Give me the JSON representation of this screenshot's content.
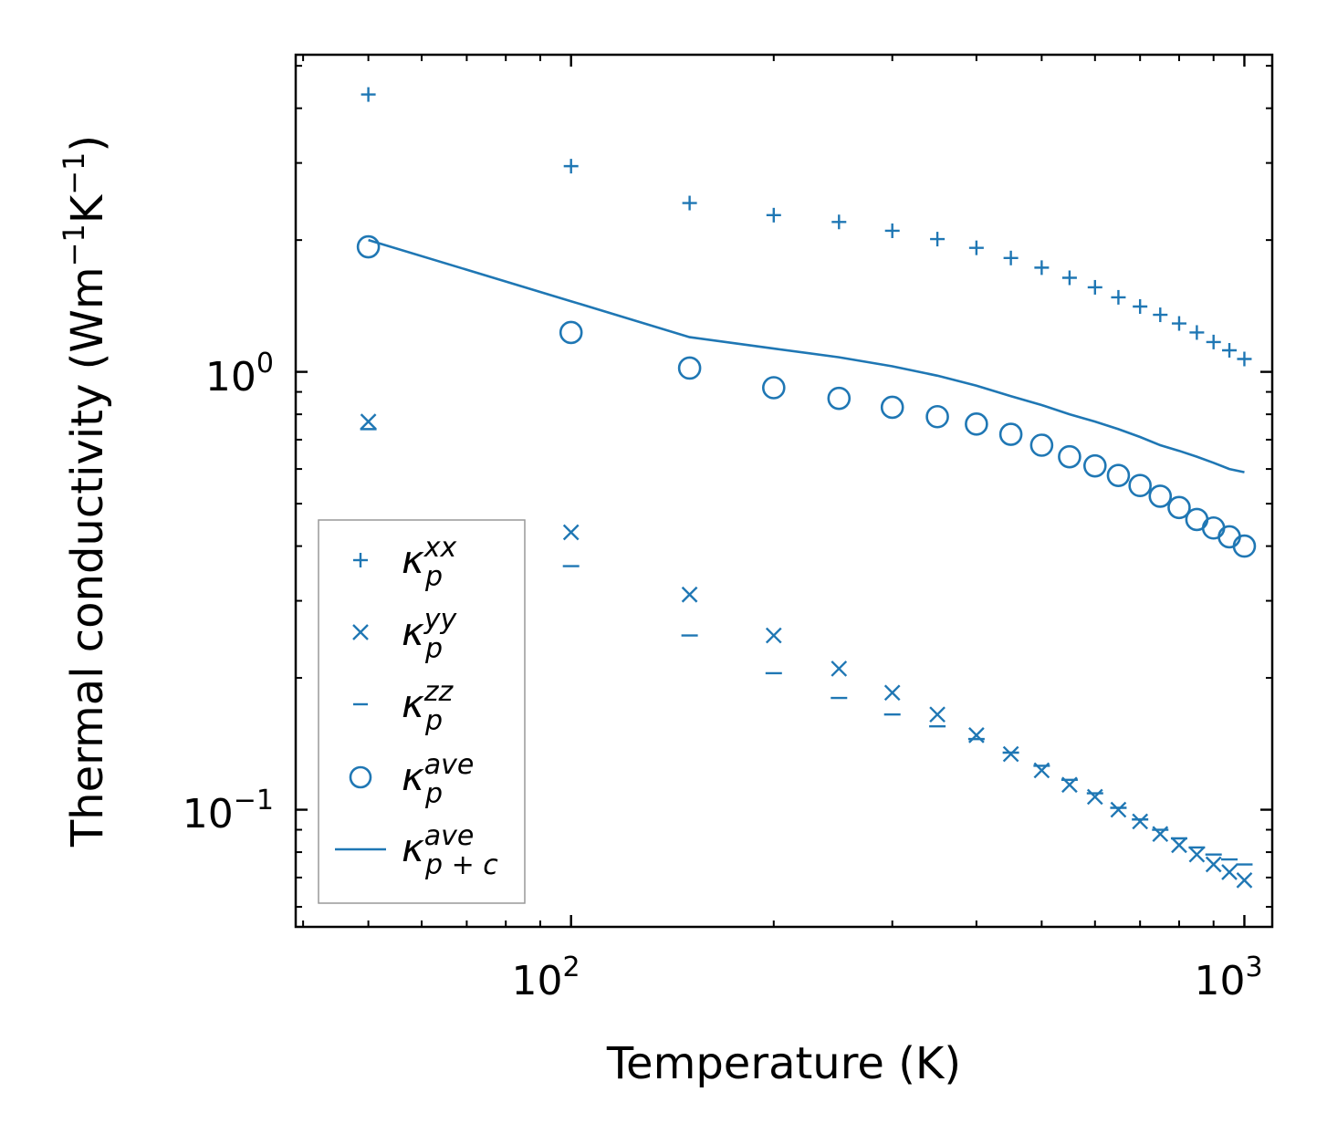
{
  "chart_data": {
    "type": "scatter",
    "xscale": "log",
    "yscale": "log",
    "xlabel": "Temperature (K)",
    "ylabel_main": "Thermal conductivity (Wm",
    "ylabel_exp1": "−1",
    "ylabel_mid": "K",
    "ylabel_exp2": "−1",
    "ylabel_close": ")",
    "xlim": [
      39,
      1100
    ],
    "ylim": [
      0.054,
      5.3
    ],
    "x_ticks": [
      {
        "base": "10",
        "exp": "2",
        "value": 100
      },
      {
        "base": "10",
        "exp": "3",
        "value": 1000
      }
    ],
    "y_ticks": [
      {
        "base": "10",
        "exp": "0",
        "value": 1
      },
      {
        "base": "10",
        "exp": "−1",
        "value": 0.1
      }
    ],
    "x": [
      50,
      100,
      150,
      200,
      250,
      300,
      350,
      400,
      450,
      500,
      550,
      600,
      650,
      700,
      750,
      800,
      850,
      900,
      950,
      1000
    ],
    "series": [
      {
        "name": "kp_xx",
        "marker": "plus",
        "values": [
          4.3,
          2.95,
          2.43,
          2.28,
          2.2,
          2.1,
          2.01,
          1.92,
          1.82,
          1.73,
          1.64,
          1.56,
          1.48,
          1.41,
          1.35,
          1.29,
          1.23,
          1.17,
          1.12,
          1.07
        ]
      },
      {
        "name": "kp_yy",
        "marker": "x",
        "values": [
          0.77,
          0.43,
          0.31,
          0.25,
          0.21,
          0.185,
          0.165,
          0.148,
          0.134,
          0.123,
          0.114,
          0.107,
          0.1,
          0.094,
          0.088,
          0.083,
          0.079,
          0.075,
          0.072,
          0.069
        ]
      },
      {
        "name": "kp_zz",
        "marker": "hline",
        "values": [
          0.74,
          0.36,
          0.25,
          0.205,
          0.18,
          0.165,
          0.155,
          0.145,
          0.135,
          0.126,
          0.117,
          0.109,
          0.101,
          0.095,
          0.09,
          0.086,
          0.082,
          0.079,
          0.077,
          0.075
        ]
      },
      {
        "name": "kp_ave",
        "marker": "circle",
        "values": [
          1.93,
          1.23,
          1.02,
          0.92,
          0.87,
          0.83,
          0.79,
          0.76,
          0.72,
          0.68,
          0.64,
          0.61,
          0.58,
          0.55,
          0.52,
          0.49,
          0.46,
          0.44,
          0.42,
          0.4
        ]
      },
      {
        "name": "kpc_ave",
        "marker": "line",
        "values": [
          2.0,
          1.45,
          1.2,
          1.13,
          1.08,
          1.03,
          0.98,
          0.93,
          0.88,
          0.84,
          0.8,
          0.77,
          0.74,
          0.71,
          0.68,
          0.66,
          0.64,
          0.62,
          0.6,
          0.59
        ]
      }
    ],
    "legend": {
      "position": "lower-left",
      "entries": [
        {
          "sym": "κ",
          "sub": "p",
          "sup": "xx"
        },
        {
          "sym": "κ",
          "sub": "p",
          "sup": "yy"
        },
        {
          "sym": "κ",
          "sub": "p",
          "sup": "zz"
        },
        {
          "sym": "κ",
          "sub": "p",
          "sup": "ave"
        },
        {
          "sym": "κ",
          "sub": "p + c",
          "sup": "ave"
        }
      ]
    },
    "color": "#1f77b4"
  }
}
